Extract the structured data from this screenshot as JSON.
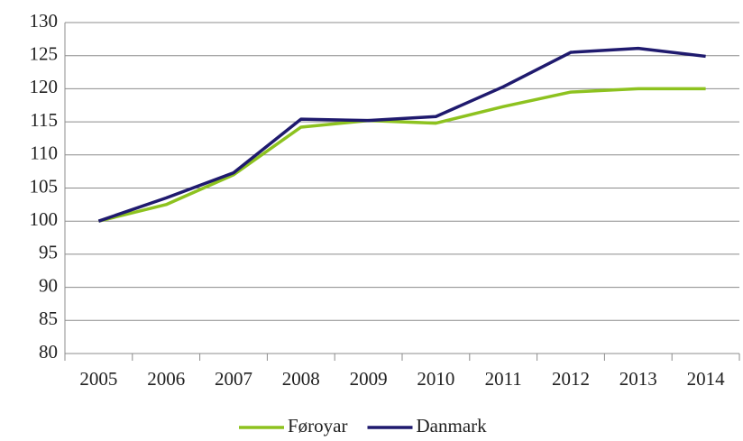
{
  "chart_data": {
    "type": "line",
    "categories": [
      "2005",
      "2006",
      "2007",
      "2008",
      "2009",
      "2010",
      "2011",
      "2012",
      "2013",
      "2014"
    ],
    "series": [
      {
        "name": "Føroyar",
        "color": "#8dc21f",
        "values": [
          100,
          102.5,
          107,
          114.2,
          115.2,
          114.8,
          117.3,
          119.5,
          120,
          120
        ]
      },
      {
        "name": "Danmark",
        "color": "#1f1a6e",
        "values": [
          100,
          103.5,
          107.3,
          115.4,
          115.2,
          115.8,
          120.3,
          125.5,
          126.1,
          124.9
        ]
      }
    ],
    "ylim": [
      80,
      130
    ],
    "yticks": [
      80,
      85,
      90,
      95,
      100,
      105,
      110,
      115,
      120,
      125,
      130
    ],
    "grid": true,
    "legend": "bottom"
  }
}
